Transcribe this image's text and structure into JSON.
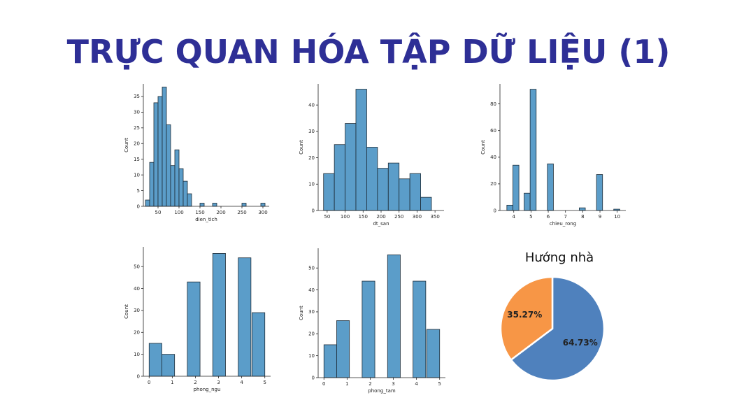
{
  "page": {
    "title": "TRỰC QUAN HÓA TẬP DỮ LIỆU (1)"
  },
  "colors": {
    "title": "#2e2f96",
    "bar": "#5b9dc9",
    "bar_edge": "#1d2b36",
    "pie_blue": "#4f81bd",
    "pie_orange": "#f79646"
  },
  "chart_data": [
    {
      "type": "bar",
      "xlabel": "dien_tich",
      "ylabel": "Count",
      "xlim": [
        15,
        315
      ],
      "ylim": [
        0,
        39
      ],
      "xticks": [
        50,
        100,
        150,
        200,
        250,
        300
      ],
      "yticks": [
        0,
        5,
        10,
        15,
        20,
        25,
        30,
        35
      ],
      "bins": [
        {
          "x0": 20,
          "x1": 30,
          "value": 2
        },
        {
          "x0": 30,
          "x1": 40,
          "value": 14
        },
        {
          "x0": 40,
          "x1": 50,
          "value": 33
        },
        {
          "x0": 50,
          "x1": 60,
          "value": 35
        },
        {
          "x0": 60,
          "x1": 70,
          "value": 38
        },
        {
          "x0": 70,
          "x1": 80,
          "value": 26
        },
        {
          "x0": 80,
          "x1": 90,
          "value": 13
        },
        {
          "x0": 90,
          "x1": 100,
          "value": 18
        },
        {
          "x0": 100,
          "x1": 110,
          "value": 12
        },
        {
          "x0": 110,
          "x1": 120,
          "value": 8
        },
        {
          "x0": 120,
          "x1": 130,
          "value": 4
        },
        {
          "x0": 150,
          "x1": 160,
          "value": 1
        },
        {
          "x0": 180,
          "x1": 190,
          "value": 1
        },
        {
          "x0": 250,
          "x1": 260,
          "value": 1
        },
        {
          "x0": 295,
          "x1": 305,
          "value": 1
        }
      ]
    },
    {
      "type": "bar",
      "xlabel": "dt_san",
      "ylabel": "Count",
      "xlim": [
        25,
        375
      ],
      "ylim": [
        0,
        48
      ],
      "xticks": [
        50,
        100,
        150,
        200,
        250,
        300,
        350
      ],
      "yticks": [
        0,
        10,
        20,
        30,
        40
      ],
      "bins": [
        {
          "x0": 40,
          "x1": 70,
          "value": 14
        },
        {
          "x0": 70,
          "x1": 100,
          "value": 25
        },
        {
          "x0": 100,
          "x1": 130,
          "value": 33
        },
        {
          "x0": 130,
          "x1": 160,
          "value": 46
        },
        {
          "x0": 160,
          "x1": 190,
          "value": 24
        },
        {
          "x0": 190,
          "x1": 220,
          "value": 16
        },
        {
          "x0": 220,
          "x1": 250,
          "value": 18
        },
        {
          "x0": 250,
          "x1": 280,
          "value": 12
        },
        {
          "x0": 280,
          "x1": 310,
          "value": 14
        },
        {
          "x0": 310,
          "x1": 340,
          "value": 5
        }
      ]
    },
    {
      "type": "bar",
      "xlabel": "chieu_rong",
      "ylabel": "Count",
      "xlim": [
        3.2,
        10.5
      ],
      "ylim": [
        0,
        95
      ],
      "xticks": [
        4,
        5,
        6,
        7,
        8,
        9,
        10
      ],
      "yticks": [
        0,
        20,
        40,
        60,
        80
      ],
      "bins": [
        {
          "x0": 3.6,
          "x1": 3.95,
          "value": 4
        },
        {
          "x0": 3.95,
          "x1": 4.3,
          "value": 34
        },
        {
          "x0": 4.6,
          "x1": 4.95,
          "value": 13
        },
        {
          "x0": 4.95,
          "x1": 5.3,
          "value": 91
        },
        {
          "x0": 5.95,
          "x1": 6.3,
          "value": 35
        },
        {
          "x0": 7.8,
          "x1": 8.15,
          "value": 2
        },
        {
          "x0": 8.8,
          "x1": 9.15,
          "value": 27
        },
        {
          "x0": 9.8,
          "x1": 10.15,
          "value": 1
        }
      ]
    },
    {
      "type": "bar",
      "xlabel": "phong_ngu",
      "ylabel": "Count",
      "xlim": [
        -0.25,
        5.25
      ],
      "ylim": [
        0,
        59
      ],
      "xticks": [
        0,
        1,
        2,
        3,
        4,
        5
      ],
      "yticks": [
        0,
        10,
        20,
        30,
        40,
        50
      ],
      "bins": [
        {
          "x0": 0,
          "x1": 0.55,
          "value": 15
        },
        {
          "x0": 0.55,
          "x1": 1.1,
          "value": 10
        },
        {
          "x0": 1.65,
          "x1": 2.2,
          "value": 43
        },
        {
          "x0": 2.75,
          "x1": 3.3,
          "value": 56
        },
        {
          "x0": 3.85,
          "x1": 4.4,
          "value": 54
        },
        {
          "x0": 4.45,
          "x1": 5.0,
          "value": 29
        }
      ]
    },
    {
      "type": "bar",
      "xlabel": "phong_tam",
      "ylabel": "Count",
      "xlim": [
        -0.25,
        5.25
      ],
      "ylim": [
        0,
        59
      ],
      "xticks": [
        0,
        1,
        2,
        3,
        4,
        5
      ],
      "yticks": [
        0,
        10,
        20,
        30,
        40,
        50
      ],
      "bins": [
        {
          "x0": 0,
          "x1": 0.55,
          "value": 15
        },
        {
          "x0": 0.55,
          "x1": 1.1,
          "value": 26
        },
        {
          "x0": 1.65,
          "x1": 2.2,
          "value": 44
        },
        {
          "x0": 2.75,
          "x1": 3.3,
          "value": 56
        },
        {
          "x0": 3.85,
          "x1": 4.4,
          "value": 44
        },
        {
          "x0": 4.45,
          "x1": 5.0,
          "value": 22
        }
      ]
    },
    {
      "type": "pie",
      "title": "Hướng nhà",
      "slices": [
        {
          "value": 64.73,
          "label": "64.73%",
          "color": "#4f81bd"
        },
        {
          "value": 35.27,
          "label": "35.27%",
          "color": "#f79646"
        }
      ]
    }
  ]
}
